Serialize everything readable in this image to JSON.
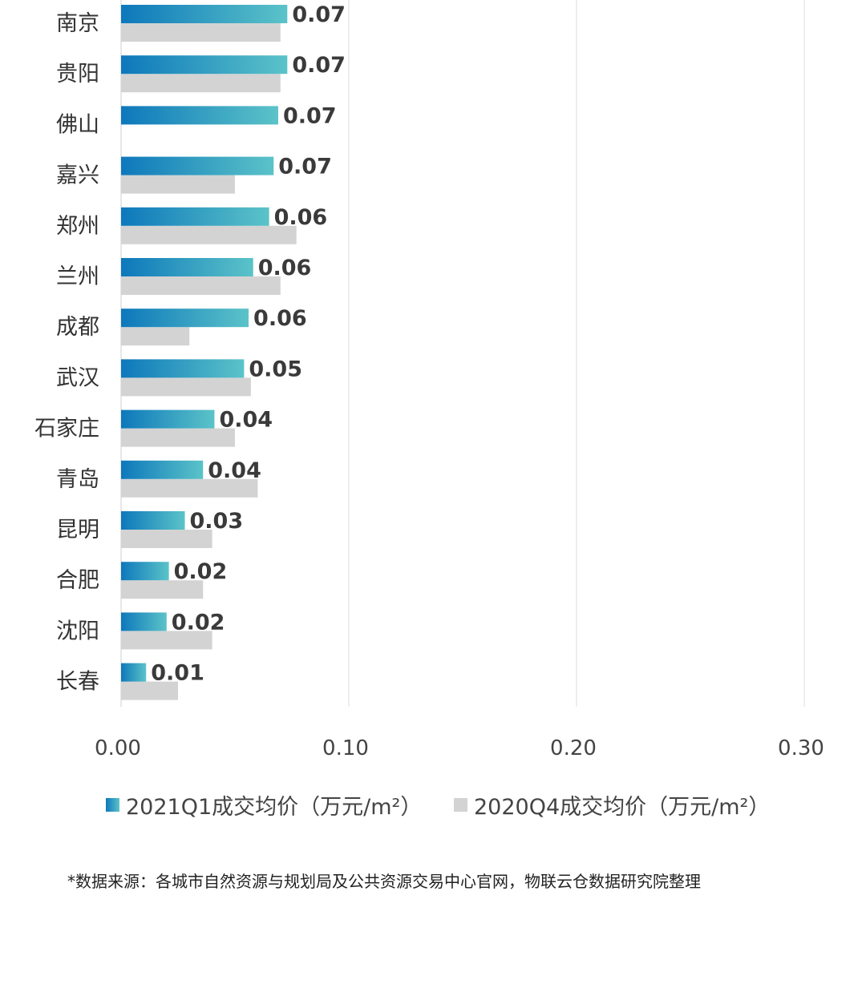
{
  "colors": {
    "series_2021q1_start": "#0d78bb",
    "series_2021q1_end": "#5bc3c8",
    "series_2020q4": "#d3d3d3",
    "gridline": "#dcdcdc",
    "label_text": "#3a3a3a"
  },
  "legend": {
    "item_2021q1": "2021Q1成交均价（万元/m²）",
    "item_2020q4": "2020Q4成交均价（万元/m²）"
  },
  "footnote": "*数据来源：各城市自然资源与规划局及公共资源交易中心官网，物联云仓数据研究院整理",
  "chart_data": {
    "type": "bar",
    "orientation": "horizontal",
    "categories": [
      "南京",
      "贵阳",
      "佛山",
      "嘉兴",
      "郑州",
      "兰州",
      "成都",
      "武汉",
      "石家庄",
      "青岛",
      "昆明",
      "合肥",
      "沈阳",
      "长春"
    ],
    "series": [
      {
        "name": "2021Q1成交均价（万元/m²）",
        "values": [
          0.073,
          0.073,
          0.069,
          0.067,
          0.065,
          0.058,
          0.056,
          0.054,
          0.041,
          0.036,
          0.028,
          0.021,
          0.02,
          0.011
        ],
        "data_labels": [
          "0.07",
          "0.07",
          "0.07",
          "0.07",
          "0.06",
          "0.06",
          "0.06",
          "0.05",
          "0.04",
          "0.04",
          "0.03",
          "0.02",
          "0.02",
          "0.01"
        ]
      },
      {
        "name": "2020Q4成交均价（万元/m²）",
        "values": [
          0.07,
          0.07,
          null,
          0.05,
          0.077,
          0.07,
          0.03,
          0.057,
          0.05,
          0.06,
          0.04,
          0.036,
          0.04,
          0.025
        ]
      }
    ],
    "x_ticks": [
      "0.00",
      "0.10",
      "0.20",
      "0.30"
    ],
    "xlim": [
      0,
      0.3
    ],
    "grid": "vertical",
    "legend_position": "bottom"
  }
}
